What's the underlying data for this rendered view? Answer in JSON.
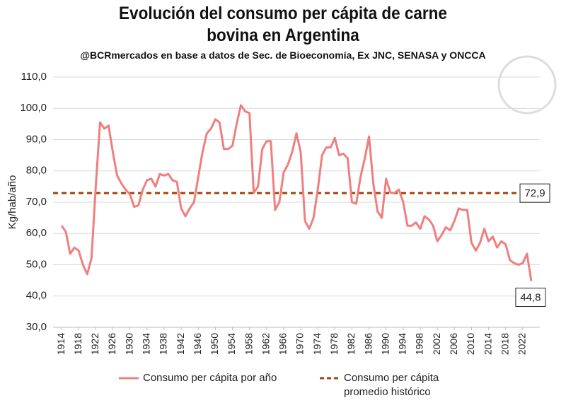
{
  "chart_data": {
    "type": "line",
    "title": "Evolución del consumo per cápita de carne bovina en Argentina",
    "subtitle": "@BCRmercados  en base a datos de Sec. de Bioeconomía,  Ex JNC, SENASA y ONCCA",
    "y_label": "Kg/hab/año",
    "x": [
      1914,
      1915,
      1916,
      1917,
      1918,
      1919,
      1920,
      1921,
      1922,
      1923,
      1924,
      1925,
      1926,
      1927,
      1928,
      1929,
      1930,
      1931,
      1932,
      1933,
      1934,
      1935,
      1936,
      1937,
      1938,
      1939,
      1940,
      1941,
      1942,
      1943,
      1944,
      1945,
      1946,
      1947,
      1948,
      1949,
      1950,
      1951,
      1952,
      1953,
      1954,
      1955,
      1956,
      1957,
      1958,
      1959,
      1960,
      1961,
      1962,
      1963,
      1964,
      1965,
      1966,
      1967,
      1968,
      1969,
      1970,
      1971,
      1972,
      1973,
      1974,
      1975,
      1976,
      1977,
      1978,
      1979,
      1980,
      1981,
      1982,
      1983,
      1984,
      1985,
      1986,
      1987,
      1988,
      1989,
      1990,
      1991,
      1992,
      1993,
      1994,
      1995,
      1996,
      1997,
      1998,
      1999,
      2000,
      2001,
      2002,
      2003,
      2004,
      2005,
      2006,
      2007,
      2008,
      2009,
      2010,
      2011,
      2012,
      2013,
      2014,
      2015,
      2016,
      2017,
      2018,
      2019,
      2020,
      2021,
      2022,
      2023,
      2024
    ],
    "series": [
      {
        "name": "Consumo per cápita por año",
        "color": "#ef7f7f",
        "values": [
          62.5,
          60.5,
          53.5,
          55.5,
          54.5,
          50,
          47,
          52,
          75,
          95.5,
          93.5,
          94.5,
          86,
          78.5,
          76,
          74,
          72.5,
          68.5,
          69,
          74,
          77,
          77.5,
          75,
          79,
          78.5,
          79,
          77,
          76.5,
          68,
          65.5,
          68,
          70,
          78,
          86,
          92,
          93.5,
          96.5,
          95.5,
          87,
          87,
          88,
          95,
          101,
          99,
          98.5,
          73,
          75,
          87,
          89.5,
          89.5,
          67.5,
          70,
          79.5,
          82,
          86,
          92,
          86,
          64,
          61.5,
          65,
          74,
          85,
          87.5,
          87.5,
          90.5,
          85,
          85.5,
          84,
          70,
          69.5,
          78,
          84,
          91,
          76,
          67,
          65,
          77.5,
          73,
          73,
          74,
          70,
          62.5,
          62.5,
          63.5,
          61.5,
          65.5,
          64.5,
          62.5,
          57.5,
          59.5,
          62,
          61,
          64,
          68,
          67.5,
          67.5,
          57,
          54.5,
          57,
          61.5,
          57.5,
          59,
          55.5,
          57.5,
          56.5,
          51.5,
          50.5,
          50,
          50.5,
          53.5,
          44.8
        ],
        "value_labels": [
          null,
          null,
          null,
          null,
          null,
          null,
          null,
          null,
          null,
          null,
          null,
          null,
          null,
          null,
          null,
          null,
          null,
          null,
          null,
          null,
          null,
          null,
          null,
          null,
          null,
          null,
          null,
          null,
          null,
          null,
          null,
          null,
          null,
          null,
          null,
          null,
          null,
          null,
          null,
          null,
          null,
          null,
          null,
          null,
          null,
          null,
          null,
          null,
          null,
          null,
          null,
          null,
          null,
          null,
          null,
          null,
          null,
          null,
          null,
          null,
          null,
          null,
          null,
          null,
          null,
          null,
          null,
          null,
          null,
          null,
          null,
          null,
          null,
          null,
          null,
          null,
          null,
          null,
          null,
          null,
          null,
          null,
          null,
          null,
          null,
          null,
          null,
          null,
          null,
          null,
          null,
          null,
          null,
          null,
          null,
          null,
          null,
          null,
          null,
          null,
          null,
          null,
          null,
          null,
          null,
          null,
          null,
          null,
          null,
          null,
          "44,8"
        ]
      }
    ],
    "average": {
      "name": "Consumo per cápita promedio histórico",
      "color": "#a0440c",
      "value": 72.9,
      "label": "72,9"
    },
    "xlim": [
      1912,
      2026
    ],
    "xticks": [
      1914,
      1918,
      1922,
      1926,
      1930,
      1934,
      1938,
      1942,
      1946,
      1950,
      1954,
      1958,
      1962,
      1966,
      1970,
      1974,
      1978,
      1982,
      1986,
      1990,
      1994,
      1998,
      2002,
      2006,
      2010,
      2014,
      2018,
      2022
    ],
    "ylim": [
      30,
      110
    ],
    "yticks": [
      {
        "value": 30,
        "label": "30,0"
      },
      {
        "value": 40,
        "label": "40,0"
      },
      {
        "value": 50,
        "label": "50,0"
      },
      {
        "value": 60,
        "label": "60,0"
      },
      {
        "value": 70,
        "label": "70,0"
      },
      {
        "value": 80,
        "label": "80,0"
      },
      {
        "value": 90,
        "label": "90,0"
      },
      {
        "value": 100,
        "label": "100,0"
      },
      {
        "value": 110,
        "label": "110,0"
      }
    ],
    "grid": true
  }
}
